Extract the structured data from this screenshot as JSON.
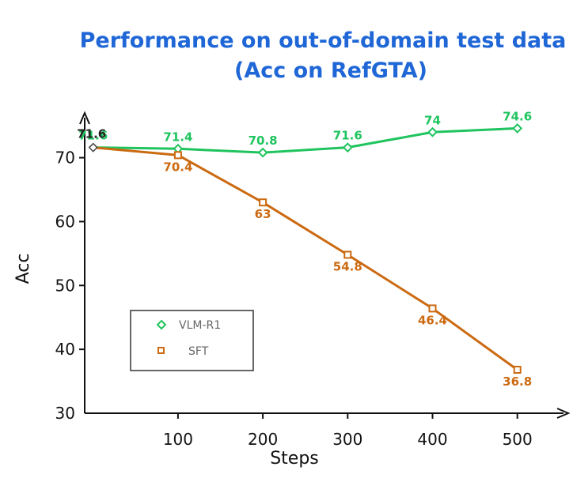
{
  "chart_data": {
    "type": "line",
    "title": "Performance on out-of-domain test data",
    "subtitle": "(Acc on RefGTA)",
    "xlabel": "Steps",
    "ylabel": "Acc",
    "x": [
      0,
      100,
      200,
      300,
      400,
      500
    ],
    "xticks": [
      100,
      200,
      300,
      400,
      500
    ],
    "xtick_labels": [
      "100",
      "200",
      "300",
      "400",
      "500"
    ],
    "xlim": [
      -10,
      560
    ],
    "yticks": [
      30,
      40,
      50,
      60,
      70
    ],
    "ytick_labels": [
      "30",
      "40",
      "50",
      "60",
      "70"
    ],
    "ylim": [
      30,
      77
    ],
    "grid": false,
    "legend_position": "lower-left",
    "series": [
      {
        "name": "VLM-R1",
        "color": "#1fc45e",
        "marker": "diamond",
        "values": [
          71.6,
          71.4,
          70.8,
          71.6,
          74,
          74.6
        ],
        "labels": [
          "71.6",
          "71.4",
          "70.8",
          "71.6",
          "74",
          "74.6"
        ]
      },
      {
        "name": "SFT",
        "color": "#cc6a12",
        "marker": "square",
        "values": [
          71.6,
          70.4,
          63,
          54.8,
          46.4,
          36.8
        ],
        "labels": [
          "",
          "70.4",
          "63",
          "54.8",
          "46.4",
          "36.8"
        ]
      }
    ]
  }
}
